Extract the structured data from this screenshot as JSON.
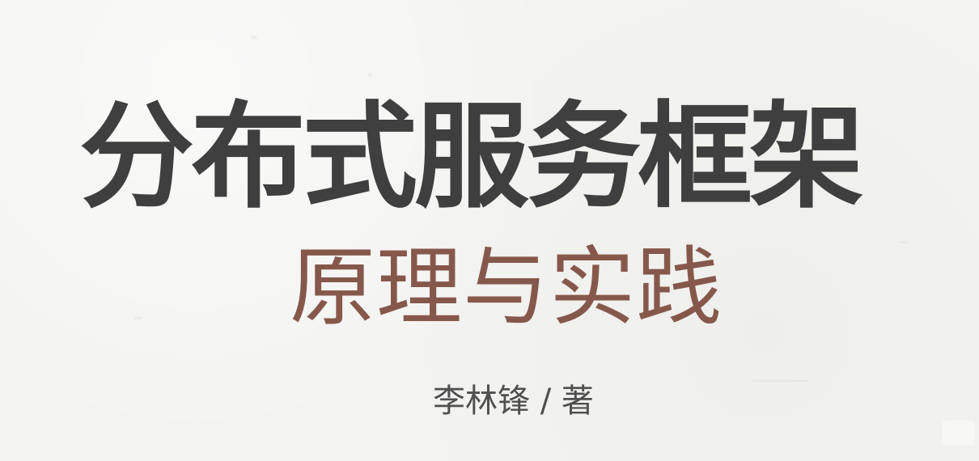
{
  "book": {
    "title": "分布式服务框架",
    "subtitle": "原理与实践",
    "author": "李林锋 / 著"
  },
  "colors": {
    "background": "#f3f3f1",
    "title": "#3f3f3f",
    "subtitle": "#86584c",
    "author": "#4f4f4f"
  }
}
